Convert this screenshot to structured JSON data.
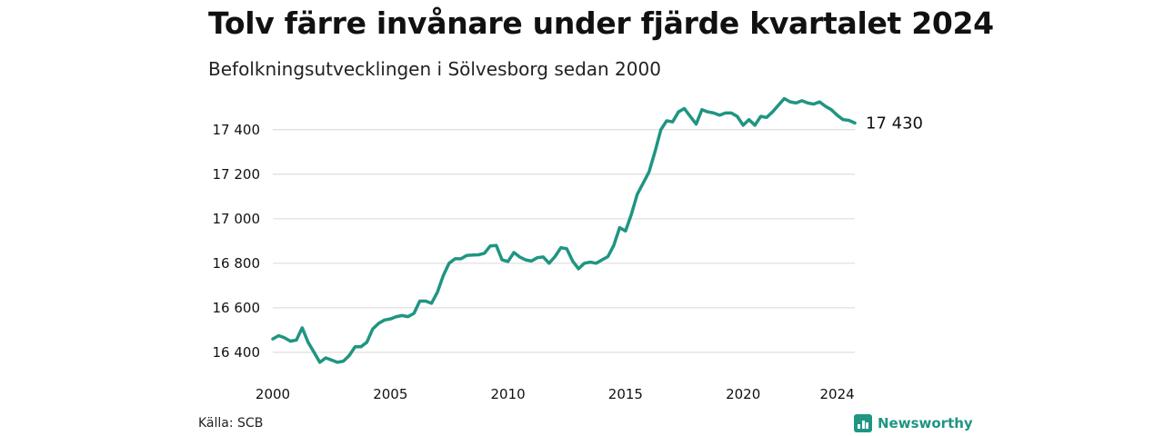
{
  "header": {
    "title": "Tolv färre invånare under fjärde kvartalet 2024",
    "subtitle": "Befolkningsutvecklingen i Sölvesborg sedan 2000"
  },
  "footer": {
    "source": "Källa: SCB",
    "brand": "Newsworthy"
  },
  "colors": {
    "line": "#1f9582",
    "grid": "#dddddd",
    "brand": "#1f9582"
  },
  "chart_data": {
    "type": "line",
    "title": "Tolv färre invånare under fjärde kvartalet 2024",
    "subtitle": "Befolkningsutvecklingen i Sölvesborg sedan 2000",
    "xlabel": "",
    "ylabel": "",
    "xlim": [
      2000.0,
      2024.75
    ],
    "ylim": [
      16330,
      17550
    ],
    "yticks": [
      16400,
      16600,
      16800,
      17000,
      17200,
      17400
    ],
    "ytick_labels": [
      "16 400",
      "16 600",
      "16 800",
      "17 000",
      "17 200",
      "17 400"
    ],
    "xticks": [
      2000,
      2005,
      2010,
      2015,
      2020,
      2024
    ],
    "xtick_labels": [
      "2000",
      "2005",
      "2010",
      "2015",
      "2020",
      "2024"
    ],
    "grid": "horizontal",
    "legend": "none",
    "end_label": "17 430",
    "series": [
      {
        "frequency": "quarterly",
        "start": "2000 Q1",
        "values": [
          16460,
          16475,
          16465,
          16450,
          16455,
          16510,
          16445,
          16400,
          16355,
          16375,
          16365,
          16355,
          16360,
          16385,
          16425,
          16425,
          16445,
          16505,
          16530,
          16545,
          16550,
          16560,
          16565,
          16560,
          16575,
          16630,
          16630,
          16620,
          16670,
          16745,
          16800,
          16820,
          16820,
          16835,
          16837,
          16838,
          16845,
          16878,
          16880,
          16815,
          16808,
          16848,
          16828,
          16815,
          16810,
          16825,
          16828,
          16800,
          16830,
          16870,
          16865,
          16810,
          16775,
          16800,
          16805,
          16800,
          16815,
          16830,
          16880,
          16960,
          16945,
          17020,
          17110,
          17160,
          17210,
          17300,
          17400,
          17440,
          17435,
          17480,
          17495,
          17460,
          17425,
          17490,
          17480,
          17475,
          17465,
          17475,
          17475,
          17460,
          17420,
          17445,
          17420,
          17460,
          17455,
          17480,
          17510,
          17540,
          17525,
          17520,
          17530,
          17520,
          17515,
          17525,
          17505,
          17490,
          17465,
          17445,
          17442,
          17430
        ]
      }
    ]
  }
}
